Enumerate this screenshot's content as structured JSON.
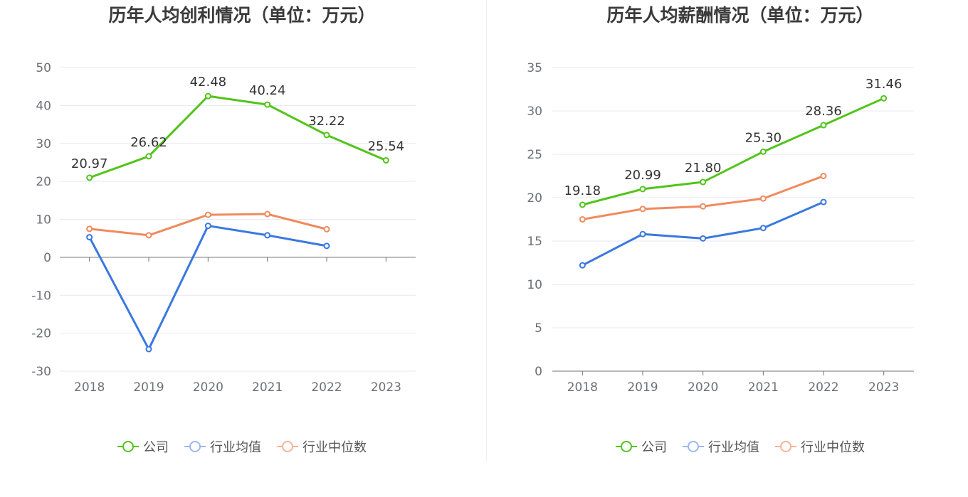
{
  "chart_data": [
    {
      "type": "line",
      "title": "历年人均创利情况（单位：万元）",
      "categories": [
        "2018",
        "2019",
        "2020",
        "2021",
        "2022",
        "2023"
      ],
      "ylim": [
        -30,
        50
      ],
      "yticks": [
        -30,
        -20,
        -10,
        0,
        10,
        20,
        30,
        40,
        50
      ],
      "series": [
        {
          "name": "公司",
          "color": "#52c41a",
          "values": [
            20.97,
            26.62,
            42.48,
            40.24,
            32.22,
            25.54
          ],
          "labels": [
            "20.97",
            "26.62",
            "42.48",
            "40.24",
            "32.22",
            "25.54"
          ]
        },
        {
          "name": "行业均值",
          "color": "#3a78e0",
          "values": [
            5.3,
            -24.2,
            8.3,
            5.8,
            3.0,
            null
          ]
        },
        {
          "name": "行业中位数",
          "color": "#f08a5d",
          "values": [
            7.5,
            5.8,
            11.2,
            11.4,
            7.4,
            null
          ]
        }
      ]
    },
    {
      "type": "line",
      "title": "历年人均薪酬情况（单位：万元）",
      "categories": [
        "2018",
        "2019",
        "2020",
        "2021",
        "2022",
        "2023"
      ],
      "ylim": [
        0,
        35
      ],
      "yticks": [
        0,
        5,
        10,
        15,
        20,
        25,
        30,
        35
      ],
      "series": [
        {
          "name": "公司",
          "color": "#52c41a",
          "values": [
            19.18,
            20.99,
            21.8,
            25.3,
            28.36,
            31.46
          ],
          "labels": [
            "19.18",
            "20.99",
            "21.80",
            "25.30",
            "28.36",
            "31.46"
          ]
        },
        {
          "name": "行业均值",
          "color": "#3a78e0",
          "values": [
            12.2,
            15.8,
            15.3,
            16.5,
            19.5,
            null
          ]
        },
        {
          "name": "行业中位数",
          "color": "#f08a5d",
          "values": [
            17.5,
            18.7,
            19.0,
            19.9,
            22.5,
            null
          ]
        }
      ]
    }
  ],
  "legend": [
    {
      "label": "公司",
      "color": "#52c41a"
    },
    {
      "label": "行业均值",
      "color": "#3a78e0"
    },
    {
      "label": "行业中位数",
      "color": "#f08a5d"
    }
  ]
}
